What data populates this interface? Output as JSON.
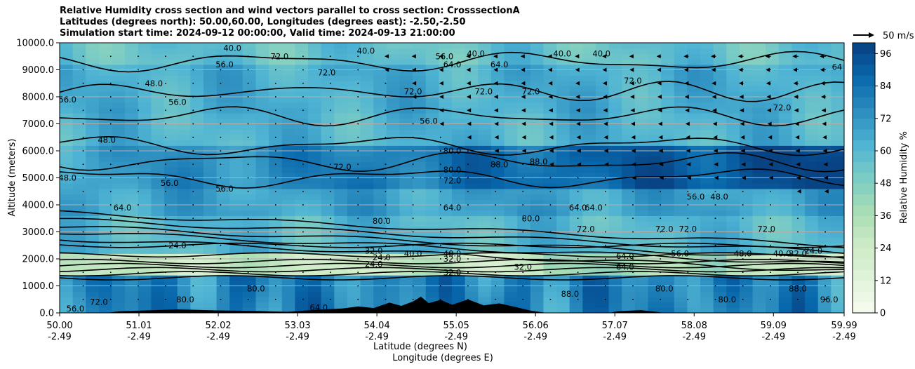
{
  "title": {
    "line1": "Relative Humidity cross section and wind vectors parallel to cross section: CrosssectionA",
    "line2": "Latitudes (degrees north): 50.00,60.00, Longitudes (degrees east): -2.50,-2.50",
    "line3": "Simulation start time: 2024-09-12 00:00:00, Valid time: 2024-09-13 21:00:00"
  },
  "chart_data": {
    "type": "heatmap",
    "subtype": "filled contour cross section with wind vectors",
    "xlabel": "Latitude (degrees N)",
    "xlabel2": "Longitude (degrees E)",
    "ylabel": "Altitude (meters)",
    "x_ticks": [
      {
        "lat": "50.00",
        "lon": "-2.49",
        "value": 50.0
      },
      {
        "lat": "51.01",
        "lon": "-2.49",
        "value": 51.01
      },
      {
        "lat": "52.02",
        "lon": "-2.49",
        "value": 52.02
      },
      {
        "lat": "53.03",
        "lon": "-2.49",
        "value": 53.03
      },
      {
        "lat": "54.04",
        "lon": "-2.49",
        "value": 54.04
      },
      {
        "lat": "55.05",
        "lon": "-2.49",
        "value": 55.05
      },
      {
        "lat": "56.06",
        "lon": "-2.49",
        "value": 56.06
      },
      {
        "lat": "57.07",
        "lon": "-2.49",
        "value": 57.07
      },
      {
        "lat": "58.08",
        "lon": "-2.49",
        "value": 58.08
      },
      {
        "lat": "59.09",
        "lon": "-2.49",
        "value": 59.09
      },
      {
        "lat": "59.99",
        "lon": "-2.49",
        "value": 59.99
      }
    ],
    "xlim": [
      50.0,
      59.99
    ],
    "y_ticks": [
      "0.0",
      "1000.0",
      "2000.0",
      "3000.0",
      "4000.0",
      "5000.0",
      "6000.0",
      "7000.0",
      "8000.0",
      "9000.0",
      "10000.0"
    ],
    "ylim": [
      0,
      10000
    ],
    "grid": "horizontal lines",
    "colorbar": {
      "label": "Relative Humidity %",
      "ticks": [
        "0",
        "12",
        "24",
        "36",
        "48",
        "60",
        "72",
        "84",
        "96"
      ],
      "range": [
        0,
        100
      ],
      "colormap": "GnBu",
      "colors": [
        "#f7fcf0",
        "#e0f3db",
        "#ccebc5",
        "#a8ddb5",
        "#7bccc4",
        "#4eb3d3",
        "#2b8cbe",
        "#0868ac",
        "#084081"
      ]
    },
    "vector_key": {
      "label": "50 m/s"
    },
    "contour_levels": [
      0,
      8,
      16,
      24,
      32,
      40,
      48,
      56,
      64,
      72,
      80,
      88,
      96
    ],
    "humidity_bands": [
      {
        "alt_from": 0,
        "alt_to": 1400,
        "rh": 78
      },
      {
        "alt_from": 1400,
        "alt_to": 2300,
        "rh": 26
      },
      {
        "alt_from": 2300,
        "alt_to": 3700,
        "rh": 60
      },
      {
        "alt_from": 3700,
        "alt_to": 4600,
        "rh": 68
      },
      {
        "alt_from": 4600,
        "alt_to": 6200,
        "rh": 80
      },
      {
        "alt_from": 6200,
        "alt_to": 7400,
        "rh": 62
      },
      {
        "alt_from": 7400,
        "alt_to": 9300,
        "rh": 64
      },
      {
        "alt_from": 9300,
        "alt_to": 10000,
        "rh": 56
      }
    ],
    "contour_labels": [
      {
        "text": "24.0",
        "lat": 51.5,
        "alt": 2500
      },
      {
        "text": "32.0",
        "lat": 54.0,
        "alt": 2300
      },
      {
        "text": "24.0",
        "lat": 54.1,
        "alt": 2050
      },
      {
        "text": "24.0",
        "lat": 54.0,
        "alt": 1800
      },
      {
        "text": "40.0",
        "lat": 54.5,
        "alt": 2200
      },
      {
        "text": "40.0",
        "lat": 55.0,
        "alt": 2200
      },
      {
        "text": "32.0",
        "lat": 55.0,
        "alt": 2000
      },
      {
        "text": "32.0",
        "lat": 55.0,
        "alt": 1500
      },
      {
        "text": "32.0",
        "lat": 55.9,
        "alt": 1700
      },
      {
        "text": "64.0",
        "lat": 50.8,
        "alt": 3900
      },
      {
        "text": "80.0",
        "lat": 54.1,
        "alt": 3400
      },
      {
        "text": "64.0",
        "lat": 55.0,
        "alt": 3900
      },
      {
        "text": "64.0",
        "lat": 56.6,
        "alt": 3900
      },
      {
        "text": "64.0",
        "lat": 56.8,
        "alt": 3900
      },
      {
        "text": "72.0",
        "lat": 55.0,
        "alt": 4900
      },
      {
        "text": "80.0",
        "lat": 55.0,
        "alt": 5300
      },
      {
        "text": "80.0",
        "lat": 55.0,
        "alt": 6000
      },
      {
        "text": "56.0",
        "lat": 54.7,
        "alt": 7100
      },
      {
        "text": "72.0",
        "lat": 54.5,
        "alt": 8200
      },
      {
        "text": "56.0",
        "lat": 50.1,
        "alt": 7900
      },
      {
        "text": "48.0",
        "lat": 50.6,
        "alt": 6400
      },
      {
        "text": "48.0",
        "lat": 50.1,
        "alt": 5000
      },
      {
        "text": "56.0",
        "lat": 51.5,
        "alt": 7800
      },
      {
        "text": "56.0",
        "lat": 51.4,
        "alt": 4800
      },
      {
        "text": "56.0",
        "lat": 52.1,
        "alt": 4600
      },
      {
        "text": "72.0",
        "lat": 53.6,
        "alt": 5400
      },
      {
        "text": "88.0",
        "lat": 55.6,
        "alt": 5500
      },
      {
        "text": "88.0",
        "lat": 56.1,
        "alt": 5600
      },
      {
        "text": "72.0",
        "lat": 57.3,
        "alt": 8600
      },
      {
        "text": "72.0",
        "lat": 59.2,
        "alt": 7600
      },
      {
        "text": "48.0",
        "lat": 58.4,
        "alt": 4300
      },
      {
        "text": "56.0",
        "lat": 58.1,
        "alt": 4300
      },
      {
        "text": "72.0",
        "lat": 57.7,
        "alt": 3100
      },
      {
        "text": "72.0",
        "lat": 58.0,
        "alt": 3100
      },
      {
        "text": "72.0",
        "lat": 59.0,
        "alt": 3100
      },
      {
        "text": "48.0",
        "lat": 58.7,
        "alt": 2200
      },
      {
        "text": "40.0",
        "lat": 59.2,
        "alt": 2200
      },
      {
        "text": "32.0",
        "lat": 59.4,
        "alt": 2200
      },
      {
        "text": "24.0",
        "lat": 59.6,
        "alt": 2300
      },
      {
        "text": "64.0",
        "lat": 57.2,
        "alt": 2100
      },
      {
        "text": "56.0",
        "lat": 57.9,
        "alt": 2200
      },
      {
        "text": "80.0",
        "lat": 57.7,
        "alt": 900
      },
      {
        "text": "88.0",
        "lat": 56.5,
        "alt": 700
      },
      {
        "text": "88.0",
        "lat": 59.4,
        "alt": 900
      },
      {
        "text": "96.0",
        "lat": 59.8,
        "alt": 500
      },
      {
        "text": "80.0",
        "lat": 58.5,
        "alt": 500
      },
      {
        "text": "64.0",
        "lat": 53.3,
        "alt": 200
      },
      {
        "text": "80.0",
        "lat": 52.5,
        "alt": 900
      },
      {
        "text": "80.0",
        "lat": 51.6,
        "alt": 500
      },
      {
        "text": "72.0",
        "lat": 50.5,
        "alt": 400
      },
      {
        "text": "56.0",
        "lat": 50.2,
        "alt": 150
      },
      {
        "text": "64",
        "lat": 59.9,
        "alt": 9100
      },
      {
        "text": "48.0",
        "lat": 51.2,
        "alt": 8500
      },
      {
        "text": "64.0",
        "lat": 55.0,
        "alt": 9200
      },
      {
        "text": "56.0",
        "lat": 54.9,
        "alt": 9500
      },
      {
        "text": "40.0",
        "lat": 55.3,
        "alt": 9600
      },
      {
        "text": "72.0",
        "lat": 52.8,
        "alt": 9500
      },
      {
        "text": "72.0",
        "lat": 53.4,
        "alt": 8900
      },
      {
        "text": "72.0",
        "lat": 55.4,
        "alt": 8200
      },
      {
        "text": "72.0",
        "lat": 56.0,
        "alt": 8200
      },
      {
        "text": "40.0",
        "lat": 56.4,
        "alt": 9600
      },
      {
        "text": "40.0",
        "lat": 56.9,
        "alt": 9600
      },
      {
        "text": "40.0",
        "lat": 52.2,
        "alt": 9800
      },
      {
        "text": "56.0",
        "lat": 52.1,
        "alt": 9200
      },
      {
        "text": "64.0",
        "lat": 55.6,
        "alt": 9200
      },
      {
        "text": "40.0",
        "lat": 53.9,
        "alt": 9700
      },
      {
        "text": "80.0",
        "lat": 56.0,
        "alt": 3500
      },
      {
        "text": "72.0",
        "lat": 56.7,
        "alt": 3100
      },
      {
        "text": "64.0",
        "lat": 57.2,
        "alt": 1700
      }
    ],
    "terrain": [
      {
        "lat": 50.0,
        "h": 0
      },
      {
        "lat": 50.6,
        "h": 0
      },
      {
        "lat": 50.75,
        "h": 60
      },
      {
        "lat": 51.0,
        "h": 80
      },
      {
        "lat": 51.5,
        "h": 130
      },
      {
        "lat": 52.0,
        "h": 90
      },
      {
        "lat": 52.5,
        "h": 70
      },
      {
        "lat": 52.9,
        "h": 40
      },
      {
        "lat": 53.3,
        "h": 120
      },
      {
        "lat": 53.6,
        "h": 160
      },
      {
        "lat": 53.8,
        "h": 240
      },
      {
        "lat": 54.0,
        "h": 180
      },
      {
        "lat": 54.2,
        "h": 380
      },
      {
        "lat": 54.35,
        "h": 260
      },
      {
        "lat": 54.5,
        "h": 420
      },
      {
        "lat": 54.6,
        "h": 600
      },
      {
        "lat": 54.7,
        "h": 360
      },
      {
        "lat": 54.85,
        "h": 480
      },
      {
        "lat": 55.0,
        "h": 300
      },
      {
        "lat": 55.2,
        "h": 500
      },
      {
        "lat": 55.4,
        "h": 280
      },
      {
        "lat": 55.6,
        "h": 350
      },
      {
        "lat": 55.8,
        "h": 220
      },
      {
        "lat": 56.0,
        "h": 80
      },
      {
        "lat": 56.2,
        "h": 0
      },
      {
        "lat": 57.0,
        "h": 0
      },
      {
        "lat": 57.1,
        "h": 60
      },
      {
        "lat": 57.4,
        "h": 100
      },
      {
        "lat": 57.6,
        "h": 40
      },
      {
        "lat": 57.7,
        "h": 0
      },
      {
        "lat": 59.99,
        "h": 0
      }
    ]
  }
}
